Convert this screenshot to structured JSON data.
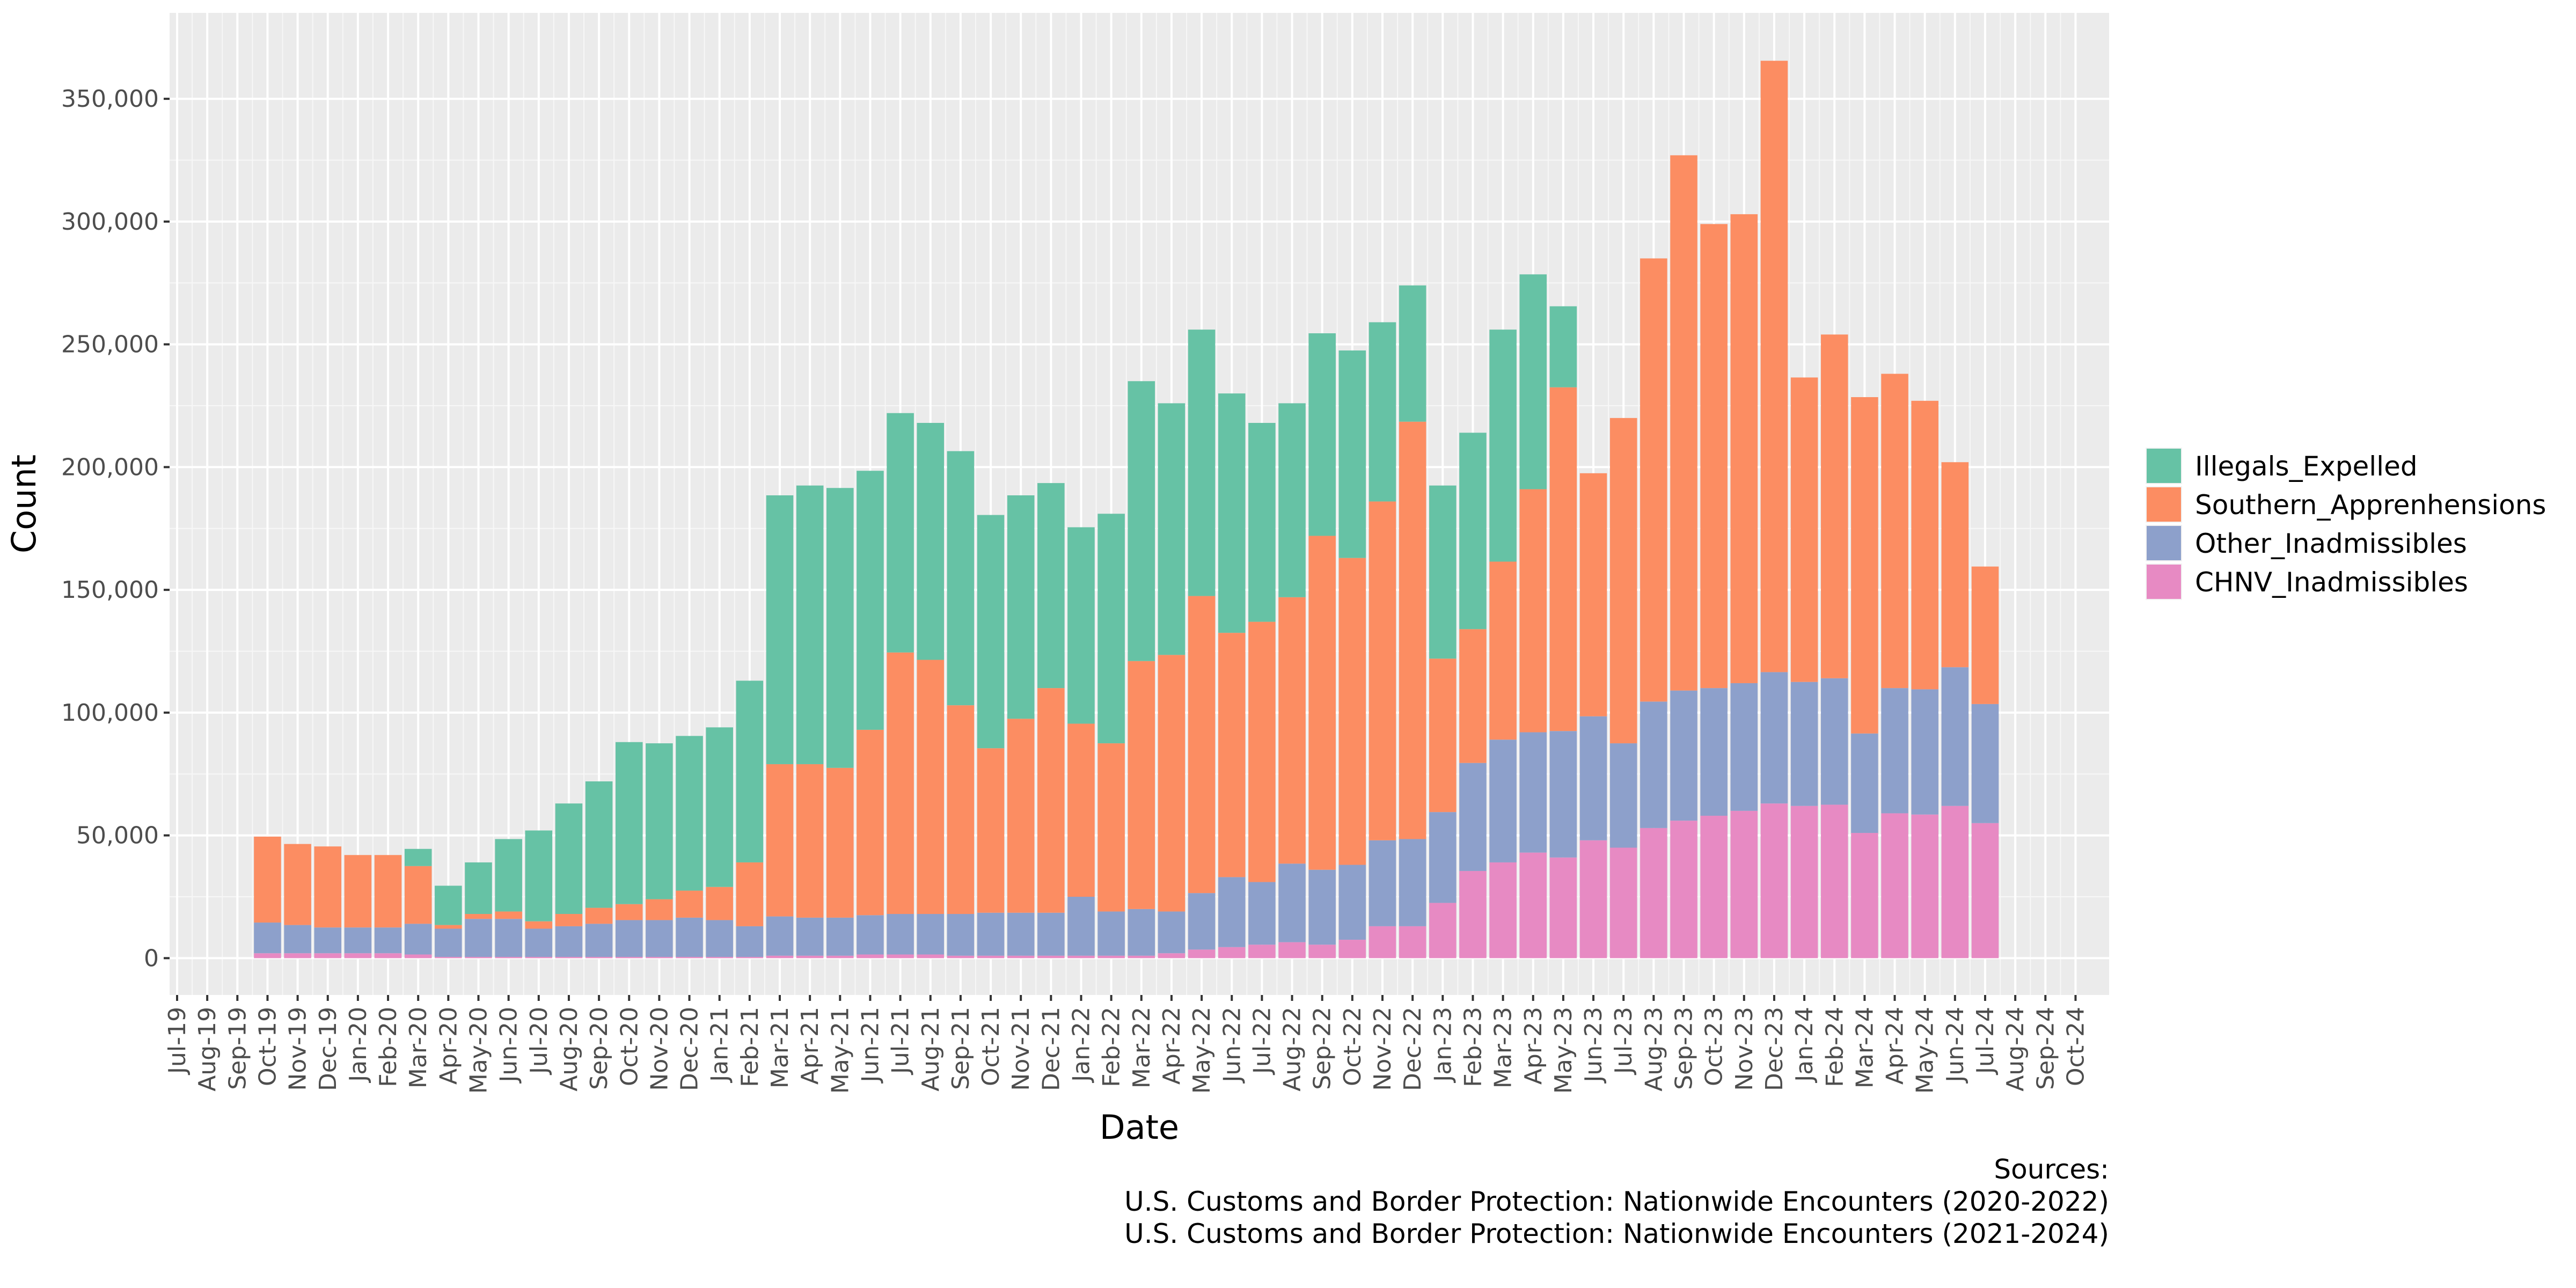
{
  "chart_data": {
    "type": "bar",
    "stacked": true,
    "xlabel": "Date",
    "ylabel": "Count",
    "ylim": [
      -15000,
      385000
    ],
    "yticks": [
      0,
      50000,
      100000,
      150000,
      200000,
      250000,
      300000,
      350000
    ],
    "ytick_labels": [
      "0",
      "50,000",
      "100,000",
      "150,000",
      "200,000",
      "250,000",
      "300,000",
      "350,000"
    ],
    "grid": true,
    "legend_position": "right",
    "categories": [
      "Jul-19",
      "Aug-19",
      "Sep-19",
      "Oct-19",
      "Nov-19",
      "Dec-19",
      "Jan-20",
      "Feb-20",
      "Mar-20",
      "Apr-20",
      "May-20",
      "Jun-20",
      "Jul-20",
      "Aug-20",
      "Sep-20",
      "Oct-20",
      "Nov-20",
      "Dec-20",
      "Jan-21",
      "Feb-21",
      "Mar-21",
      "Apr-21",
      "May-21",
      "Jun-21",
      "Jul-21",
      "Aug-21",
      "Sep-21",
      "Oct-21",
      "Nov-21",
      "Dec-21",
      "Jan-22",
      "Feb-22",
      "Mar-22",
      "Apr-22",
      "May-22",
      "Jun-22",
      "Jul-22",
      "Aug-22",
      "Sep-22",
      "Oct-22",
      "Nov-22",
      "Dec-22",
      "Jan-23",
      "Feb-23",
      "Mar-23",
      "Apr-23",
      "May-23",
      "Jun-23",
      "Jul-23",
      "Aug-23",
      "Sep-23",
      "Oct-23",
      "Nov-23",
      "Dec-23",
      "Jan-24",
      "Feb-24",
      "Mar-24",
      "Apr-24",
      "May-24",
      "Jun-24",
      "Jul-24",
      "Aug-24",
      "Sep-24",
      "Oct-24"
    ],
    "series": [
      {
        "name": "CHNV_Inadmissibles",
        "color": "#e78ac3",
        "values": [
          0,
          0,
          0,
          2000,
          2000,
          2000,
          2000,
          2000,
          1500,
          500,
          500,
          500,
          500,
          500,
          500,
          500,
          500,
          500,
          500,
          500,
          1000,
          1000,
          1000,
          1500,
          1500,
          1500,
          1000,
          1000,
          1000,
          1000,
          1000,
          1000,
          1000,
          2000,
          3500,
          4500,
          5500,
          6500,
          5500,
          7500,
          13000,
          13000,
          22500,
          35500,
          39000,
          43000,
          41000,
          48000,
          45000,
          53000,
          56000,
          58000,
          60000,
          63000,
          62000,
          62500,
          51000,
          59000,
          58500,
          62000,
          55000,
          0,
          0,
          0
        ]
      },
      {
        "name": "Other_Inadmissibles",
        "color": "#8da0cb",
        "values": [
          0,
          0,
          0,
          12500,
          11500,
          10500,
          10500,
          10500,
          12500,
          11500,
          15500,
          15500,
          11500,
          12500,
          13500,
          15000,
          15000,
          16000,
          15000,
          12500,
          16000,
          15500,
          15500,
          16000,
          16500,
          16500,
          17000,
          17500,
          17500,
          17500,
          24000,
          18000,
          19000,
          17000,
          23000,
          28500,
          25500,
          32000,
          30500,
          30500,
          35000,
          35500,
          37000,
          44000,
          50000,
          49000,
          51500,
          50500,
          42500,
          51500,
          53000,
          52000,
          52000,
          53500,
          50500,
          51500,
          40500,
          51000,
          51000,
          56500,
          48500,
          0,
          0,
          0
        ]
      },
      {
        "name": "Southern_Apprenhensions",
        "color": "#fc8d62",
        "values": [
          0,
          0,
          0,
          35000,
          33000,
          33000,
          29500,
          29500,
          23500,
          1500,
          2000,
          3000,
          3000,
          5000,
          6500,
          6500,
          8500,
          11000,
          13500,
          26000,
          62000,
          62500,
          61000,
          75500,
          106500,
          103500,
          85000,
          67000,
          79000,
          91500,
          70500,
          68500,
          101000,
          104500,
          121000,
          99500,
          106000,
          108500,
          136000,
          125000,
          138000,
          170000,
          62500,
          54500,
          72500,
          99000,
          140000,
          99000,
          132500,
          180500,
          218000,
          189000,
          191000,
          249000,
          124000,
          140000,
          137000,
          128000,
          117500,
          83500,
          56000,
          0,
          0,
          0
        ]
      },
      {
        "name": "Illegals_Expelled",
        "color": "#66c2a5",
        "values": [
          0,
          0,
          0,
          0,
          0,
          0,
          0,
          0,
          7000,
          16000,
          21000,
          29500,
          37000,
          45000,
          51500,
          66000,
          63500,
          63000,
          65000,
          74000,
          109500,
          113500,
          114000,
          105500,
          97500,
          96500,
          103500,
          95000,
          91000,
          83500,
          80000,
          93500,
          114000,
          102500,
          108500,
          97500,
          81000,
          79000,
          82500,
          84500,
          73000,
          55500,
          70500,
          80000,
          94500,
          87500,
          33000,
          0,
          0,
          0,
          0,
          0,
          0,
          0,
          0,
          0,
          0,
          0,
          0,
          0,
          0,
          0,
          0,
          0
        ]
      }
    ],
    "legend_order": [
      "Illegals_Expelled",
      "Southern_Apprenhensions",
      "Other_Inadmissibles",
      "CHNV_Inadmissibles"
    ],
    "annotation": {
      "line1": "Sources:",
      "line2": "U.S. Customs and Border Protection: Nationwide Encounters (2020-2022)",
      "line3": "U.S. Customs and Border Protection: Nationwide Encounters (2021-2024)"
    }
  }
}
